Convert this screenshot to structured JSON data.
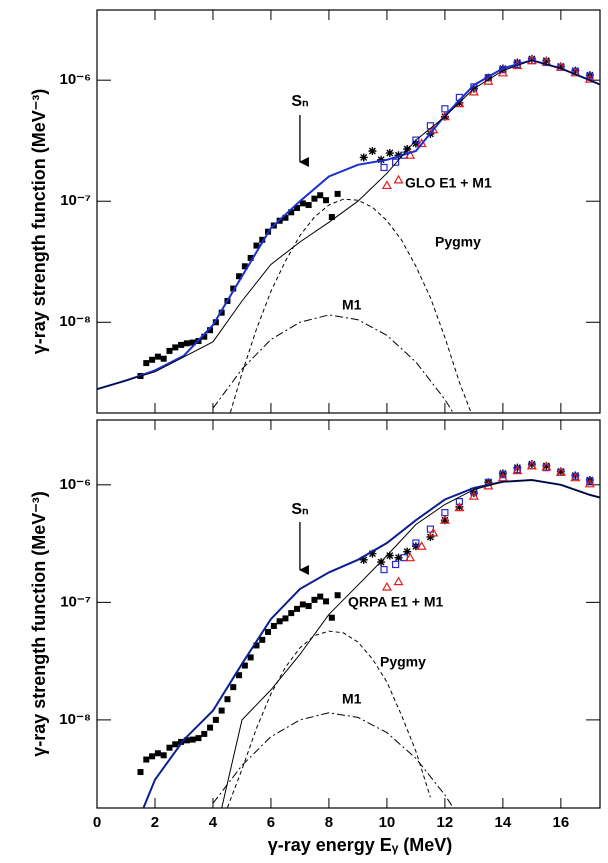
{
  "chart_data": [
    {
      "type": "line",
      "ylabel": "γ-ray strength function (MeV⁻³)",
      "log_y": true,
      "xlim": [
        0,
        17.35
      ],
      "xticks": [
        0,
        2,
        4,
        6,
        8,
        10,
        12,
        14,
        16
      ],
      "xtick_labels": false,
      "ylim": [
        1.78e-09,
        3.8e-06
      ],
      "yticks": [
        {
          "value": 1e-08,
          "label": "10⁻⁸"
        },
        {
          "value": 1e-07,
          "label": "10⁻⁷"
        },
        {
          "value": 1e-06,
          "label": "10⁻⁶"
        }
      ],
      "annotations": [
        "Sₙ"
      ],
      "series": [
        {
          "marker": "square",
          "color": "#000000",
          "x": [
            1.5,
            1.7,
            1.9,
            2.1,
            2.3,
            2.5,
            2.7,
            2.9,
            3.1,
            3.3,
            3.5,
            3.7,
            3.9,
            4.1,
            4.3,
            4.5,
            4.7,
            4.9,
            5.1,
            5.3,
            5.5,
            5.7,
            5.9,
            6.1,
            6.3,
            6.5,
            6.7,
            6.9,
            7.1,
            7.3,
            7.5,
            7.7,
            7.9,
            8.1,
            8.3
          ],
          "values": [
            3.6e-09,
            4.6e-09,
            4.9e-09,
            5.2e-09,
            5e-09,
            5.8e-09,
            6.2e-09,
            6.5e-09,
            6.7e-09,
            6.8e-09,
            7e-09,
            7.6e-09,
            8.6e-09,
            1e-08,
            1.2e-08,
            1.5e-08,
            1.9e-08,
            2.4e-08,
            2.9e-08,
            3.4e-08,
            4.3e-08,
            4.8e-08,
            5.6e-08,
            6.3e-08,
            6.9e-08,
            7.3e-08,
            8.1e-08,
            8.8e-08,
            9.6e-08,
            9.3e-08,
            1.05e-07,
            1.12e-07,
            1.02e-07,
            7.4e-08,
            1.15e-07
          ]
        },
        {
          "marker": "star",
          "color": "#000000",
          "x": [
            9.2,
            9.5,
            9.8,
            10.1,
            10.4,
            10.7,
            11.0,
            11.5,
            12,
            12.5,
            13,
            13.5,
            14,
            14.5,
            15,
            15.5,
            16,
            16.5,
            17
          ],
          "values": [
            2.3e-07,
            2.6e-07,
            2.2e-07,
            2.5e-07,
            2.4e-07,
            2.7e-07,
            3e-07,
            3.6e-07,
            5e-07,
            6.5e-07,
            8.5e-07,
            1.05e-06,
            1.25e-06,
            1.4e-06,
            1.5e-06,
            1.45e-06,
            1.3e-06,
            1.2e-06,
            1.1e-06
          ]
        },
        {
          "marker": "open-square",
          "color": "#2b2bd6",
          "x": [
            9.9,
            10.3,
            10.6,
            11,
            11.5,
            12,
            12.5,
            13,
            13.5,
            14,
            14.5,
            15,
            15.5,
            16,
            16.5,
            17
          ],
          "values": [
            1.9e-07,
            2.1e-07,
            2.4e-07,
            3.2e-07,
            4.2e-07,
            5.8e-07,
            7.2e-07,
            8.8e-07,
            1.05e-06,
            1.22e-06,
            1.35e-06,
            1.45e-06,
            1.4e-06,
            1.28e-06,
            1.18e-06,
            1.08e-06
          ]
        },
        {
          "marker": "triangle",
          "color": "#e02020",
          "x": [
            10,
            10.4,
            10.8,
            11.2,
            11.6,
            12,
            12.5,
            13,
            13.5,
            14,
            14.5,
            15,
            15.5,
            16,
            16.5,
            17
          ],
          "values": [
            1.35e-07,
            1.5e-07,
            2.4e-07,
            3e-07,
            3.9e-07,
            5e-07,
            6.4e-07,
            8e-07,
            9.8e-07,
            1.15e-06,
            1.32e-06,
            1.45e-06,
            1.42e-06,
            1.28e-06,
            1.15e-06,
            1.02e-06
          ]
        },
        {
          "name": "GLO E1 + M1",
          "line": "solid",
          "color": "#1a2fd0",
          "x": [
            0,
            1,
            2,
            3,
            4,
            5,
            6,
            7,
            8,
            9,
            10,
            11,
            12,
            13,
            14,
            15,
            16,
            17,
            17.35
          ],
          "values": [
            2.8e-09,
            3.3e-09,
            4e-09,
            5.3e-09,
            9.5e-09,
            2.4e-08,
            6e-08,
            1e-07,
            1.6e-07,
            2e-07,
            2.2e-07,
            2.6e-07,
            5.1e-07,
            9.1e-07,
            1.25e-06,
            1.46e-06,
            1.25e-06,
            1e-06,
            9.2e-07
          ]
        },
        {
          "line": "thin",
          "color": "#000000",
          "x": [
            0,
            2,
            4,
            5,
            6,
            7,
            8,
            9,
            10,
            11,
            12,
            13,
            14,
            15,
            16,
            17,
            17.35
          ],
          "values": [
            2.8e-09,
            3.9e-09,
            6.9e-09,
            1.5e-08,
            3e-08,
            4.6e-08,
            6.7e-08,
            1e-07,
            1.7e-07,
            3.2e-07,
            5e-07,
            8.5e-07,
            1.2e-06,
            1.46e-06,
            1.25e-06,
            1e-06,
            9.2e-07
          ]
        },
        {
          "name": "Pygmy",
          "line": "dashed",
          "color": "#000000",
          "x": [
            4.6,
            5,
            5.5,
            6,
            6.5,
            7,
            7.5,
            8,
            8.5,
            9,
            9.5,
            10,
            10.5,
            11,
            11.5,
            12,
            12.5,
            12.9
          ],
          "values": [
            1.8e-09,
            3.8e-09,
            8.8e-09,
            1.8e-08,
            3.2e-08,
            5.2e-08,
            7.4e-08,
            9.3e-08,
            1.04e-07,
            1.02e-07,
            8.9e-08,
            6.9e-08,
            4.8e-08,
            2.9e-08,
            1.6e-08,
            7.5e-09,
            3.2e-09,
            1.8e-09
          ]
        },
        {
          "name": "M1",
          "line": "dashdot",
          "color": "#000000",
          "x": [
            4,
            5,
            6,
            7,
            8,
            9,
            10,
            11,
            12,
            12.6
          ],
          "values": [
            1.95e-09,
            4.1e-09,
            7.2e-09,
            1e-08,
            1.15e-08,
            1.05e-08,
            7.8e-09,
            4.7e-09,
            2.3e-09,
            1.35e-09
          ]
        }
      ]
    },
    {
      "type": "line",
      "ylabel": "γ-ray strength function (MeV⁻³)",
      "xlabel": "γ-ray energy Eᵧ (MeV)",
      "log_y": true,
      "xlim": [
        0,
        17.35
      ],
      "xticks": [
        0,
        2,
        4,
        6,
        8,
        10,
        12,
        14,
        16
      ],
      "xtick_labels": true,
      "ylim": [
        1.78e-09,
        3.56e-06
      ],
      "yticks": [
        {
          "value": 1e-08,
          "label": "10⁻⁸"
        },
        {
          "value": 1e-07,
          "label": "10⁻⁷"
        },
        {
          "value": 1e-06,
          "label": "10⁻⁶"
        }
      ],
      "annotations": [
        "Sₙ"
      ],
      "series": [
        {
          "marker": "square",
          "color": "#000000",
          "x": [
            1.5,
            1.7,
            1.9,
            2.1,
            2.3,
            2.5,
            2.7,
            2.9,
            3.1,
            3.3,
            3.5,
            3.7,
            3.9,
            4.1,
            4.3,
            4.5,
            4.7,
            4.9,
            5.1,
            5.3,
            5.5,
            5.7,
            5.9,
            6.1,
            6.3,
            6.5,
            6.7,
            6.9,
            7.1,
            7.3,
            7.5,
            7.7,
            7.9,
            8.1,
            8.3
          ],
          "values": [
            3.6e-09,
            4.6e-09,
            4.9e-09,
            5.2e-09,
            5e-09,
            5.8e-09,
            6.2e-09,
            6.5e-09,
            6.7e-09,
            6.8e-09,
            7e-09,
            7.6e-09,
            8.6e-09,
            1e-08,
            1.2e-08,
            1.5e-08,
            1.9e-08,
            2.4e-08,
            2.9e-08,
            3.4e-08,
            4.3e-08,
            4.8e-08,
            5.6e-08,
            6.3e-08,
            6.9e-08,
            7.3e-08,
            8.1e-08,
            8.8e-08,
            9.6e-08,
            9.3e-08,
            1.05e-07,
            1.12e-07,
            1.02e-07,
            7.4e-08,
            1.15e-07
          ]
        },
        {
          "marker": "star",
          "color": "#000000",
          "x": [
            9.2,
            9.5,
            9.8,
            10.1,
            10.4,
            10.7,
            11.0,
            11.5,
            12,
            12.5,
            13,
            13.5,
            14,
            14.5,
            15,
            15.5,
            16,
            16.5,
            17
          ],
          "values": [
            2.3e-07,
            2.6e-07,
            2.2e-07,
            2.5e-07,
            2.4e-07,
            2.7e-07,
            3e-07,
            3.6e-07,
            5e-07,
            6.5e-07,
            8.5e-07,
            1.05e-06,
            1.25e-06,
            1.4e-06,
            1.5e-06,
            1.45e-06,
            1.3e-06,
            1.2e-06,
            1.1e-06
          ]
        },
        {
          "marker": "open-square",
          "color": "#2b2bd6",
          "x": [
            9.9,
            10.3,
            10.6,
            11,
            11.5,
            12,
            12.5,
            13,
            13.5,
            14,
            14.5,
            15,
            15.5,
            16,
            16.5,
            17
          ],
          "values": [
            1.9e-07,
            2.1e-07,
            2.4e-07,
            3.2e-07,
            4.2e-07,
            5.8e-07,
            7.2e-07,
            8.8e-07,
            1.05e-06,
            1.22e-06,
            1.35e-06,
            1.45e-06,
            1.4e-06,
            1.28e-06,
            1.18e-06,
            1.08e-06
          ]
        },
        {
          "marker": "triangle",
          "color": "#e02020",
          "x": [
            10,
            10.4,
            10.8,
            11.2,
            11.6,
            12,
            12.5,
            13,
            13.5,
            14,
            14.5,
            15,
            15.5,
            16,
            16.5,
            17
          ],
          "values": [
            1.35e-07,
            1.5e-07,
            2.4e-07,
            3e-07,
            3.9e-07,
            5e-07,
            6.4e-07,
            8e-07,
            9.8e-07,
            1.15e-06,
            1.32e-06,
            1.45e-06,
            1.42e-06,
            1.28e-06,
            1.15e-06,
            1.02e-06
          ]
        },
        {
          "name": "QRPA E1 + M1",
          "line": "solid",
          "color": "#0b1f8f",
          "x": [
            1.6,
            2,
            3,
            4,
            5,
            6,
            7,
            8,
            9,
            10,
            11,
            12,
            13,
            14,
            15,
            16,
            17,
            17.35
          ],
          "values": [
            1.78e-09,
            3.1e-09,
            6.8e-09,
            1.2e-08,
            3e-08,
            7.2e-08,
            1.3e-07,
            1.8e-07,
            2.3e-07,
            3.2e-07,
            5e-07,
            7.5e-07,
            9.4e-07,
            1.06e-06,
            1.1e-06,
            1e-06,
            8.2e-07,
            7.8e-07
          ]
        },
        {
          "line": "thin",
          "color": "#000000",
          "x": [
            4.3,
            5,
            6,
            7,
            8,
            9,
            10,
            11,
            12,
            13,
            14,
            15,
            16,
            17,
            17.35
          ],
          "values": [
            1.78e-09,
            1e-08,
            1.8e-08,
            3.6e-08,
            7.9e-08,
            1.4e-07,
            2.5e-07,
            4.6e-07,
            6.8e-07,
            9.1e-07,
            1.06e-06,
            1.1e-06,
            1e-06,
            8.2e-07,
            7.8e-07
          ]
        },
        {
          "name": "Pygmy",
          "line": "dashed",
          "color": "#000000",
          "x": [
            4.5,
            5,
            5.5,
            6,
            6.5,
            7,
            7.5,
            8,
            8.5,
            9,
            9.5,
            10,
            10.5,
            11,
            11.5
          ],
          "values": [
            1.8e-09,
            3.8e-09,
            8.5e-09,
            1.66e-08,
            2.8e-08,
            4.1e-08,
            5.2e-08,
            5.7e-08,
            5.5e-08,
            4.6e-08,
            3.3e-08,
            2.1e-08,
            1.1e-08,
            5.4e-09,
            2.2e-09
          ]
        },
        {
          "name": "M1",
          "line": "dashdot",
          "color": "#000000",
          "x": [
            4,
            5,
            6,
            7,
            8,
            9,
            10,
            11,
            12,
            12.6
          ],
          "values": [
            1.95e-09,
            4.1e-09,
            7.2e-09,
            1e-08,
            1.15e-08,
            1.05e-08,
            7.8e-09,
            4.7e-09,
            2.3e-09,
            1.35e-09
          ]
        }
      ]
    }
  ]
}
